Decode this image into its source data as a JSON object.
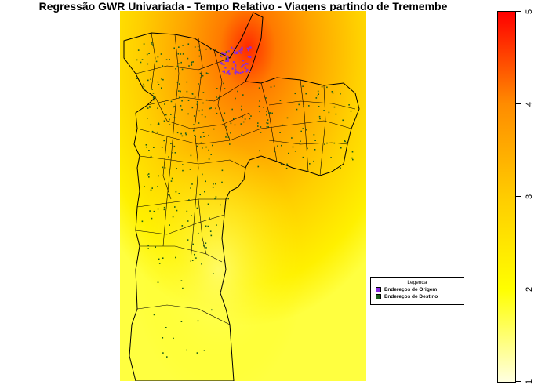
{
  "title": "Regressão GWR Univariada - Tempo Relativo - Viagens partindo de Tremembe",
  "legend": {
    "title": "Legenda",
    "items": [
      {
        "label": "Endereços de Origem",
        "color": "#8a2be2"
      },
      {
        "label": "Endereços de Destino",
        "color": "#1a5e1a"
      }
    ]
  },
  "colorbar": {
    "ticks": [
      "1",
      "2",
      "3",
      "4",
      "5"
    ],
    "min": 1,
    "max": 5,
    "colors": [
      "#ffffe0",
      "#ffff00",
      "#ffcc00",
      "#ff8c00",
      "#ff0000"
    ]
  }
}
